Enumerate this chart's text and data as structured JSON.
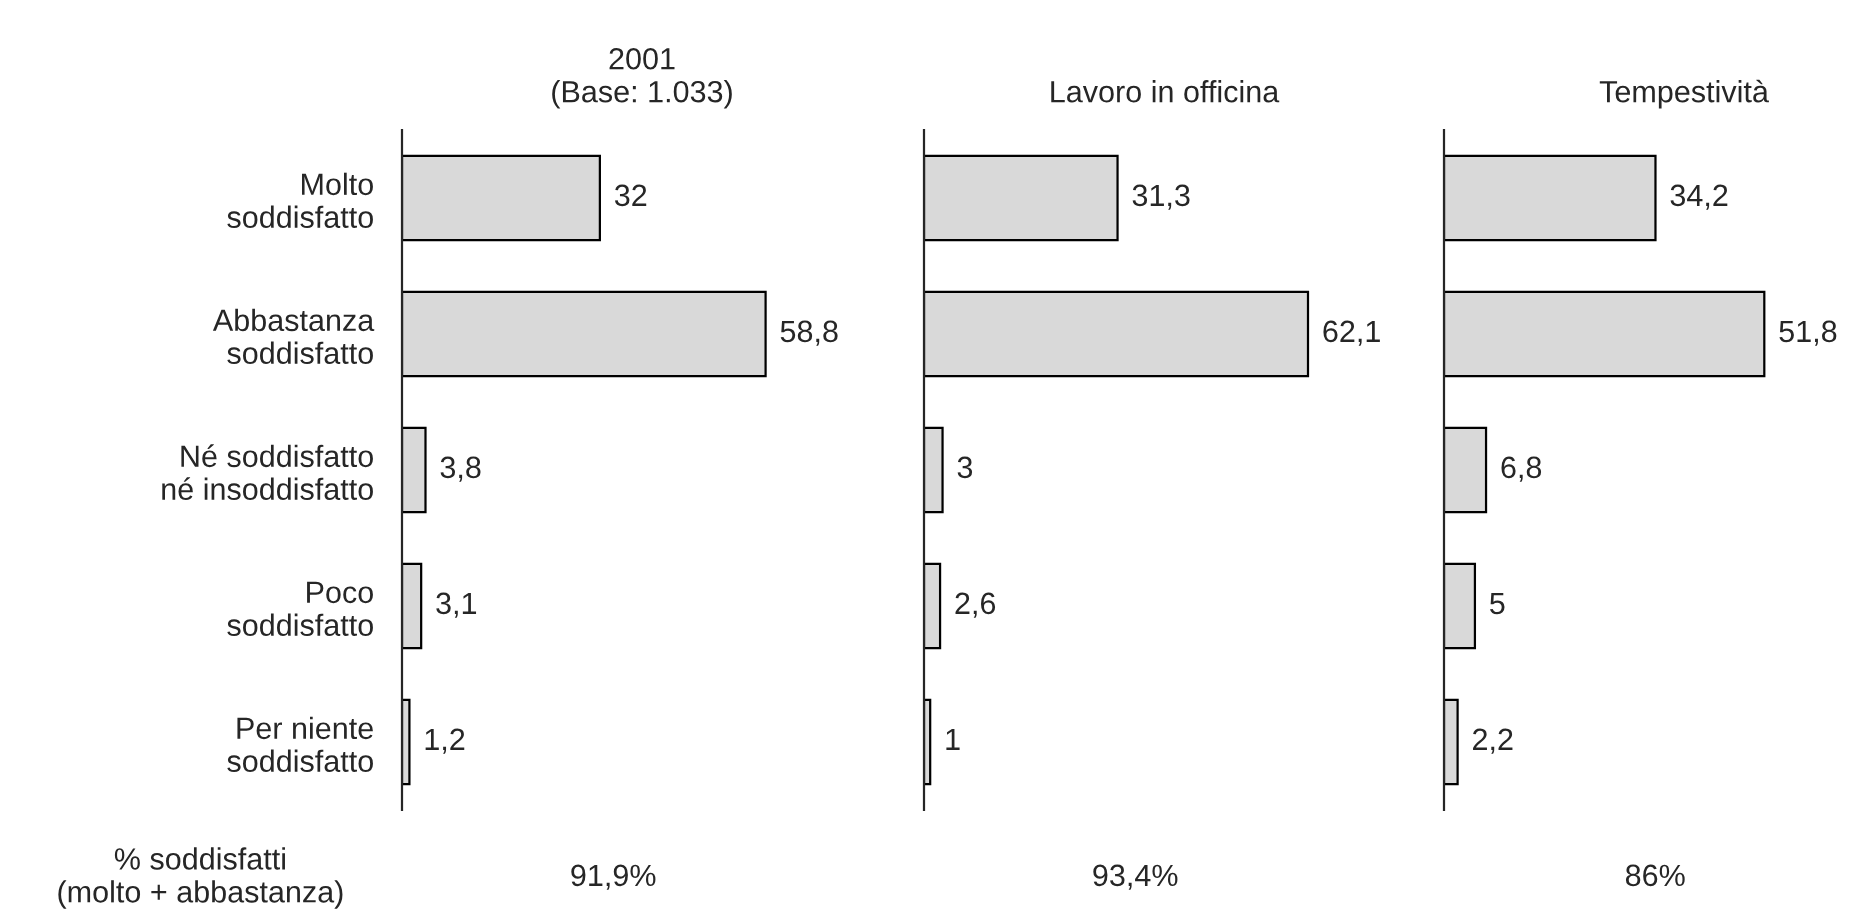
{
  "chart_data": [
    {
      "type": "bar",
      "orientation": "horizontal",
      "title": "2001\n(Base: 1.033)",
      "categories": [
        "Molto\nsoddisfatto",
        "Abbastanza\nsoddisfatto",
        "Né soddisfatto\nné insoddisfatto",
        "Poco\nsoddisfatto",
        "Per niente\nsoddisfatto"
      ],
      "values": [
        32,
        58.8,
        3.8,
        3.1,
        1.2
      ],
      "value_labels": [
        "32",
        "58,8",
        "3,8",
        "3,1",
        "1,2"
      ],
      "color": "#d9d9d9",
      "annotations": [
        "% soddisfatti\n(molto + abbastanza)",
        "91,9%"
      ],
      "tick_labels": "y",
      "grid": false,
      "legend": false
    },
    {
      "type": "bar",
      "orientation": "horizontal",
      "title": "Lavoro in officina",
      "categories": [
        null,
        null,
        null,
        null,
        null
      ],
      "values": [
        31.3,
        62.1,
        3,
        2.6,
        1
      ],
      "value_labels": [
        "31,3",
        "62,1",
        "3",
        "2,6",
        "1"
      ],
      "color": "#d9d9d9",
      "annotations": [
        "93,4%"
      ],
      "tick_labels": false,
      "grid": false,
      "legend": false
    },
    {
      "type": "bar",
      "orientation": "horizontal",
      "title": "Tempestività",
      "categories": [
        null,
        null,
        null,
        null,
        null
      ],
      "values": [
        34.2,
        51.8,
        6.8,
        5,
        2.2
      ],
      "value_labels": [
        "34,2",
        "51,8",
        "6,8",
        "5",
        "2,2"
      ],
      "color": "#d9d9d9",
      "annotations": [
        "86%"
      ],
      "tick_labels": false,
      "grid": false,
      "legend": false
    }
  ]
}
